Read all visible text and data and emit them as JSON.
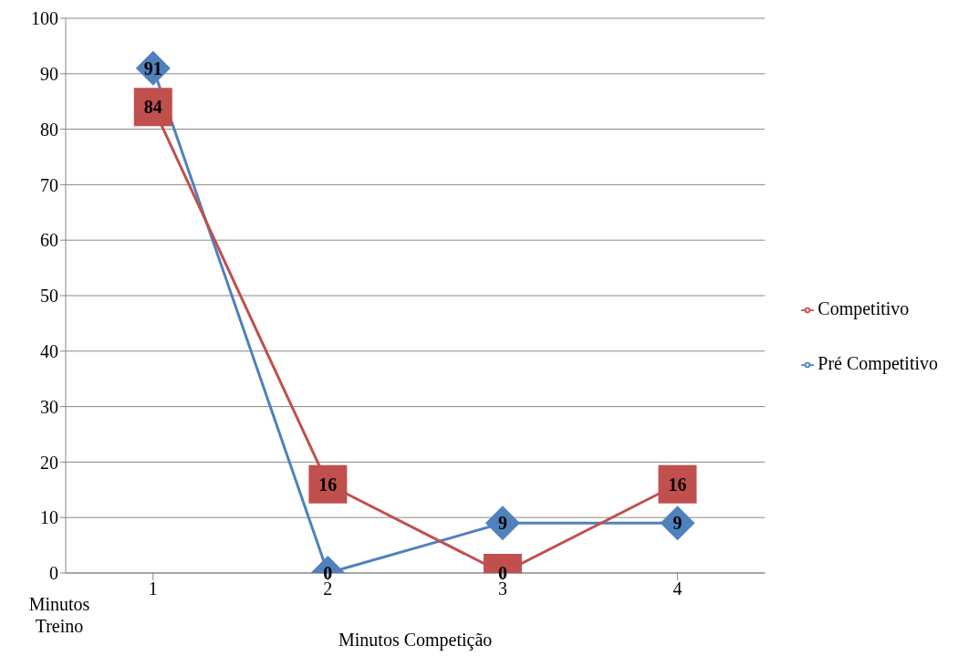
{
  "chart_data": {
    "type": "line",
    "xlabel": "Minutos Competição",
    "annotations": [
      "Minutos Treino"
    ],
    "categories": [
      "1",
      "2",
      "3",
      "4"
    ],
    "series": [
      {
        "name": "Pré Competitivo",
        "color": "#4f81bd",
        "values": [
          91,
          0,
          9,
          9
        ],
        "marker": "diamond"
      },
      {
        "name": "Competitivo",
        "color": "#c0504d",
        "values": [
          84,
          16,
          0,
          16
        ],
        "marker": "square"
      }
    ],
    "ylim": [
      0,
      100
    ],
    "yticks": [
      0,
      10,
      20,
      30,
      40,
      50,
      60,
      70,
      80,
      90,
      100
    ],
    "grid": "y",
    "legend": "right",
    "data_labels": true
  }
}
